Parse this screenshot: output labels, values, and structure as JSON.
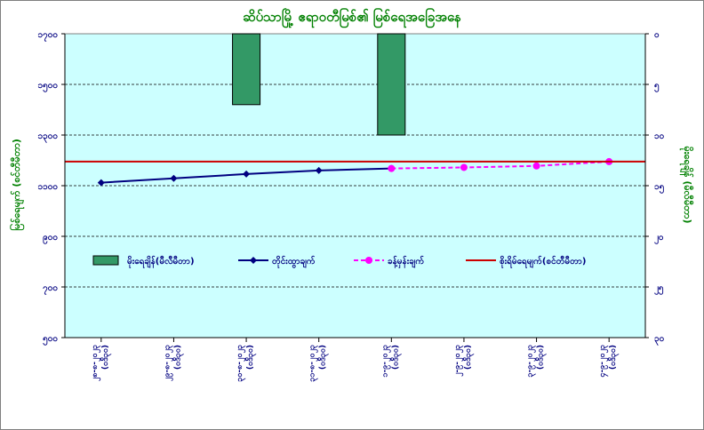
{
  "chart_data": {
    "type": "bar",
    "title": "ဆိပ်သာမြို့ ဧရာဝတီမြစ်၏ မြစ်ရေအခြေအနေ",
    "xlabel": "",
    "ylabel_left": "မြစ်ရေမျက် (စင်တီမီတာ)",
    "ylabel_right": "မိုးရေချိန် (မီလီမီတာ)",
    "categories": [
      "၂၈-၈-၂၀၂၃ (ဝဒ်ိ၃၀)",
      "၂၉-၈-၂၀၂၃ (ဝဒ်ိ၃၀)",
      "၃၀-၈-၂၀၂၃ (ဝဒ်ိ၃၀)",
      "၃၁-၈-၂၀၂၃ (ဝဒ်ိ၃၀)",
      "၁-၉-၂၀၂၃ (ဝဒ်ိ၃၀)",
      "၂-၉-၂၀၂၃ (ဝဒ်ိ၃၀)",
      "၃-၉-၂၀၂၃ (ဝဒ်ိ၃၀)",
      "၄-၉-၂၀၂၃ (ဝဒ်ိ၃၀)"
    ],
    "ylim_left": [
      500,
      1700
    ],
    "yticks_left": [
      "၁၇၀၀",
      "၁၅၀၀",
      "၁၃၀၀",
      "၁၁၀၀",
      "၉၀၀",
      "၇၀၀",
      "၅၀၀"
    ],
    "ylim_right": [
      0,
      30
    ],
    "right_axis_inverted": true,
    "yticks_right": [
      "၀",
      "၅",
      "၁၀",
      "၁၅",
      "၂၀",
      "၂၅",
      "၃၀"
    ],
    "grid": true,
    "legend_position": "inside-lower",
    "series": [
      {
        "name": "မိုးရေချိန်(မီလီမီတာ)",
        "kind": "bar",
        "axis": "right",
        "color": "#339966",
        "values": [
          0,
          0,
          7,
          0,
          10,
          0,
          0,
          0
        ]
      },
      {
        "name": "တိုင်းထွာချက်",
        "kind": "line",
        "axis": "left",
        "color": "#000080",
        "marker": "diamond",
        "values": [
          1112,
          1129,
          1146,
          1160,
          1168,
          null,
          null,
          null
        ]
      },
      {
        "name": "ခန့်မှန်းချက်",
        "kind": "line",
        "axis": "left",
        "color": "#ff00ff",
        "dash": true,
        "marker": "circle",
        "values": [
          null,
          null,
          null,
          null,
          1168,
          1172,
          1178,
          1195
        ]
      },
      {
        "name": "စိုးရိမ်ရေမျက်(စင်တီမီတာ)",
        "kind": "hline",
        "axis": "left",
        "color": "#cc0000",
        "value": 1195
      }
    ]
  }
}
